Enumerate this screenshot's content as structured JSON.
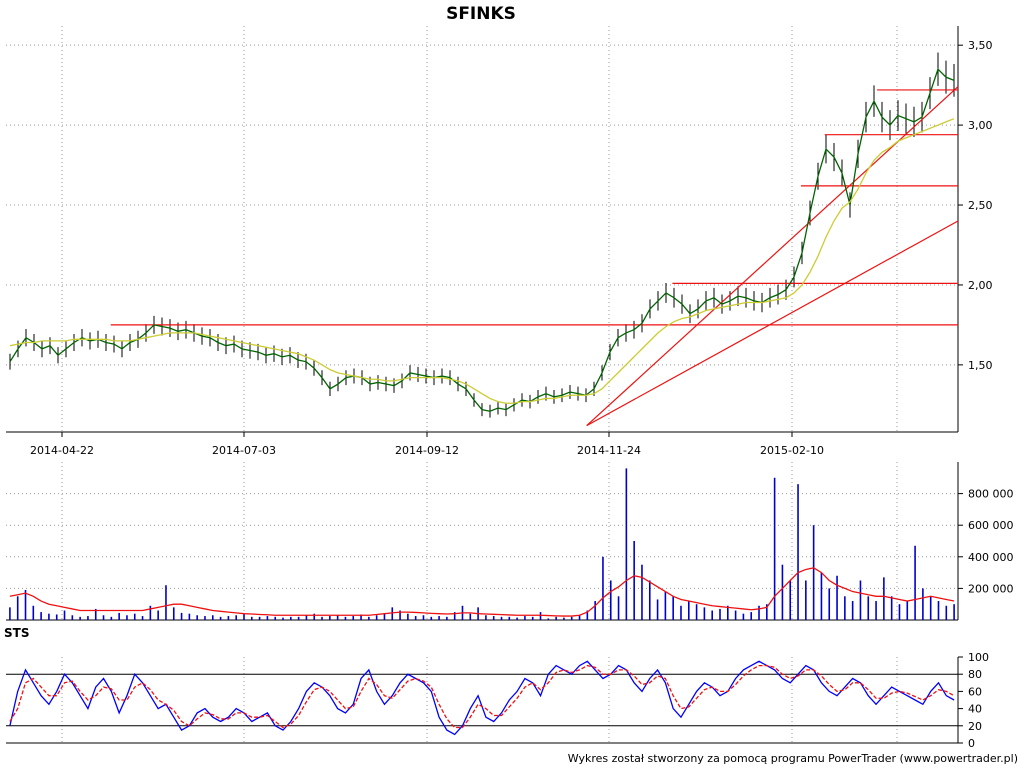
{
  "chart_data": [
    {
      "type": "line",
      "title": "SFINKS",
      "x_tick_labels": [
        "2014-04-22",
        "2014-07-03",
        "2014-09-12",
        "2014-11-24",
        "2015-02-10"
      ],
      "y_tick_labels": [
        "1,50",
        "2,00",
        "2,50",
        "3,00",
        "3,50"
      ],
      "y_ticks": [
        1.5,
        2.0,
        2.5,
        3.0,
        3.5
      ],
      "ylim": [
        1.08,
        3.62
      ],
      "grid": true,
      "series": [
        {
          "role": "close",
          "color": "#006400",
          "values": [
            1.52,
            1.6,
            1.67,
            1.64,
            1.6,
            1.62,
            1.56,
            1.6,
            1.64,
            1.67,
            1.65,
            1.66,
            1.64,
            1.63,
            1.6,
            1.64,
            1.66,
            1.7,
            1.75,
            1.74,
            1.73,
            1.71,
            1.72,
            1.7,
            1.68,
            1.67,
            1.64,
            1.62,
            1.63,
            1.6,
            1.59,
            1.58,
            1.56,
            1.57,
            1.55,
            1.56,
            1.53,
            1.52,
            1.48,
            1.42,
            1.35,
            1.38,
            1.42,
            1.43,
            1.42,
            1.38,
            1.39,
            1.38,
            1.37,
            1.4,
            1.45,
            1.44,
            1.43,
            1.42,
            1.43,
            1.42,
            1.38,
            1.35,
            1.28,
            1.22,
            1.21,
            1.23,
            1.22,
            1.25,
            1.28,
            1.27,
            1.3,
            1.32,
            1.3,
            1.31,
            1.33,
            1.32,
            1.31,
            1.35,
            1.45,
            1.58,
            1.67,
            1.7,
            1.72,
            1.76,
            1.85,
            1.9,
            1.95,
            1.92,
            1.88,
            1.82,
            1.85,
            1.9,
            1.92,
            1.88,
            1.9,
            1.93,
            1.92,
            1.9,
            1.89,
            1.92,
            1.94,
            1.97,
            2.05,
            2.2,
            2.45,
            2.68,
            2.85,
            2.8,
            2.7,
            2.5,
            2.82,
            3.05,
            3.15,
            3.05,
            3.0,
            3.06,
            3.04,
            3.02,
            3.05,
            3.2,
            3.35,
            3.3,
            3.28
          ]
        },
        {
          "role": "moving-average",
          "color": "#cccc33",
          "values": [
            1.62,
            1.63,
            1.64,
            1.64,
            1.65,
            1.65,
            1.65,
            1.65,
            1.66,
            1.66,
            1.66,
            1.66,
            1.66,
            1.65,
            1.65,
            1.65,
            1.66,
            1.67,
            1.68,
            1.69,
            1.7,
            1.7,
            1.7,
            1.7,
            1.69,
            1.68,
            1.67,
            1.66,
            1.65,
            1.64,
            1.63,
            1.62,
            1.61,
            1.6,
            1.59,
            1.58,
            1.57,
            1.55,
            1.53,
            1.5,
            1.47,
            1.45,
            1.44,
            1.43,
            1.42,
            1.41,
            1.41,
            1.4,
            1.4,
            1.41,
            1.42,
            1.42,
            1.42,
            1.42,
            1.42,
            1.41,
            1.4,
            1.38,
            1.35,
            1.32,
            1.29,
            1.27,
            1.26,
            1.26,
            1.27,
            1.27,
            1.28,
            1.29,
            1.29,
            1.3,
            1.31,
            1.31,
            1.31,
            1.32,
            1.35,
            1.4,
            1.45,
            1.5,
            1.55,
            1.6,
            1.65,
            1.7,
            1.74,
            1.77,
            1.79,
            1.8,
            1.82,
            1.84,
            1.85,
            1.86,
            1.87,
            1.88,
            1.89,
            1.89,
            1.89,
            1.9,
            1.91,
            1.92,
            1.95,
            2.0,
            2.08,
            2.18,
            2.3,
            2.4,
            2.48,
            2.52,
            2.6,
            2.7,
            2.78,
            2.83,
            2.86,
            2.9,
            2.92,
            2.94,
            2.96,
            2.98,
            3.0,
            3.02,
            3.04
          ]
        }
      ],
      "support_lines": [
        {
          "color": "#ee1111",
          "y": 1.75,
          "x_start": 0.11,
          "x_end": 1.0
        },
        {
          "color": "#ee1111",
          "y": 2.01,
          "x_start": 0.7,
          "x_end": 1.0
        },
        {
          "color": "#ee1111",
          "y": 2.62,
          "x_start": 0.835,
          "x_end": 1.0
        },
        {
          "color": "#ee1111",
          "y": 2.94,
          "x_start": 0.86,
          "x_end": 1.0
        },
        {
          "color": "#ee1111",
          "y": 3.22,
          "x_start": 0.915,
          "x_end": 1.0
        }
      ],
      "trend_lines": [
        {
          "color": "#ee1111",
          "from": [
            0.61,
            1.12
          ],
          "to": [
            1.0,
            2.4
          ]
        },
        {
          "color": "#ee1111",
          "from": [
            0.61,
            1.12
          ],
          "to": [
            1.0,
            3.24
          ]
        }
      ]
    },
    {
      "type": "bar",
      "title": "",
      "y_tick_labels": [
        "200 000",
        "400 000",
        "600 000",
        "800 000"
      ],
      "y_ticks": [
        200000,
        400000,
        600000,
        800000
      ],
      "ylim": [
        0,
        1000000
      ],
      "bar_color": "#0000cc",
      "avg_color": "#ee1111",
      "values": [
        80000,
        150000,
        190000,
        90000,
        50000,
        40000,
        35000,
        60000,
        30000,
        20000,
        25000,
        70000,
        30000,
        20000,
        45000,
        30000,
        40000,
        25000,
        90000,
        60000,
        220000,
        80000,
        45000,
        40000,
        30000,
        25000,
        30000,
        20000,
        25000,
        30000,
        40000,
        20000,
        20000,
        25000,
        20000,
        15000,
        20000,
        20000,
        30000,
        40000,
        20000,
        25000,
        30000,
        20000,
        25000,
        35000,
        20000,
        30000,
        40000,
        80000,
        60000,
        40000,
        25000,
        30000,
        20000,
        25000,
        20000,
        50000,
        90000,
        40000,
        80000,
        30000,
        25000,
        20000,
        20000,
        15000,
        25000,
        20000,
        50000,
        10000,
        20000,
        15000,
        20000,
        30000,
        60000,
        120000,
        400000,
        250000,
        150000,
        960000,
        500000,
        350000,
        250000,
        130000,
        180000,
        150000,
        90000,
        120000,
        100000,
        80000,
        60000,
        70000,
        90000,
        60000,
        40000,
        50000,
        90000,
        100000,
        900000,
        350000,
        250000,
        860000,
        250000,
        600000,
        300000,
        200000,
        280000,
        150000,
        120000,
        250000,
        150000,
        120000,
        270000,
        150000,
        100000,
        120000,
        470000,
        200000,
        150000,
        120000,
        90000,
        100000
      ],
      "avg_values": [
        150000,
        160000,
        170000,
        150000,
        120000,
        100000,
        90000,
        80000,
        70000,
        60000,
        60000,
        60000,
        60000,
        60000,
        60000,
        60000,
        60000,
        60000,
        70000,
        80000,
        90000,
        100000,
        100000,
        90000,
        80000,
        70000,
        60000,
        55000,
        50000,
        45000,
        40000,
        38000,
        35000,
        33000,
        30000,
        30000,
        30000,
        30000,
        30000,
        30000,
        30000,
        30000,
        30000,
        30000,
        30000,
        30000,
        30000,
        35000,
        40000,
        45000,
        50000,
        50000,
        48000,
        45000,
        42000,
        40000,
        38000,
        40000,
        45000,
        45000,
        40000,
        38000,
        36000,
        34000,
        32000,
        30000,
        30000,
        30000,
        30000,
        28000,
        26000,
        25000,
        25000,
        30000,
        50000,
        90000,
        140000,
        180000,
        210000,
        250000,
        280000,
        270000,
        240000,
        210000,
        180000,
        150000,
        130000,
        120000,
        110000,
        100000,
        90000,
        85000,
        80000,
        75000,
        70000,
        65000,
        70000,
        80000,
        150000,
        200000,
        250000,
        300000,
        320000,
        330000,
        300000,
        250000,
        220000,
        200000,
        180000,
        170000,
        160000,
        150000,
        150000,
        140000,
        130000,
        120000,
        130000,
        140000,
        150000,
        140000,
        130000,
        120000
      ]
    },
    {
      "type": "line",
      "title": "STS",
      "y_tick_labels": [
        "0",
        "20",
        "40",
        "60",
        "80",
        "100"
      ],
      "y_ticks": [
        0,
        20,
        40,
        60,
        80,
        100
      ],
      "ylim": [
        0,
        100
      ],
      "reference_levels": [
        20,
        80
      ],
      "series": [
        {
          "role": "fast",
          "color": "#0000ff",
          "values": [
            20,
            60,
            85,
            70,
            55,
            45,
            60,
            80,
            70,
            55,
            40,
            65,
            75,
            60,
            35,
            55,
            80,
            70,
            55,
            40,
            45,
            30,
            15,
            20,
            35,
            40,
            30,
            25,
            30,
            40,
            35,
            25,
            30,
            35,
            20,
            15,
            25,
            40,
            60,
            70,
            65,
            55,
            40,
            35,
            45,
            75,
            85,
            60,
            45,
            55,
            70,
            80,
            75,
            70,
            60,
            30,
            15,
            10,
            20,
            40,
            55,
            30,
            25,
            35,
            50,
            60,
            75,
            70,
            55,
            80,
            90,
            85,
            80,
            90,
            95,
            85,
            75,
            80,
            90,
            85,
            70,
            60,
            75,
            85,
            70,
            40,
            30,
            45,
            60,
            70,
            65,
            55,
            60,
            75,
            85,
            90,
            95,
            90,
            85,
            75,
            70,
            80,
            90,
            85,
            70,
            60,
            55,
            65,
            75,
            70,
            55,
            45,
            55,
            65,
            60,
            55,
            50,
            45,
            60,
            70,
            55,
            50
          ]
        },
        {
          "role": "slow",
          "color": "#ee1111",
          "values": [
            25,
            40,
            70,
            75,
            65,
            55,
            55,
            70,
            72,
            60,
            50,
            55,
            65,
            63,
            50,
            50,
            65,
            70,
            62,
            50,
            45,
            38,
            25,
            20,
            28,
            35,
            33,
            28,
            28,
            35,
            35,
            30,
            30,
            32,
            25,
            18,
            22,
            32,
            48,
            62,
            65,
            60,
            50,
            40,
            42,
            60,
            75,
            68,
            55,
            52,
            62,
            72,
            75,
            72,
            65,
            45,
            28,
            18,
            18,
            30,
            45,
            40,
            32,
            32,
            42,
            52,
            65,
            70,
            62,
            70,
            82,
            85,
            82,
            85,
            90,
            88,
            80,
            80,
            85,
            85,
            78,
            68,
            70,
            78,
            75,
            55,
            40,
            42,
            52,
            62,
            65,
            60,
            60,
            68,
            78,
            85,
            90,
            90,
            88,
            80,
            75,
            78,
            85,
            85,
            78,
            68,
            60,
            62,
            70,
            70,
            62,
            52,
            52,
            58,
            60,
            58,
            54,
            50,
            55,
            62,
            60,
            55
          ]
        }
      ]
    }
  ],
  "footer": "Wykres został stworzony za pomocą programu PowerTrader (www.powertrader.pl)"
}
